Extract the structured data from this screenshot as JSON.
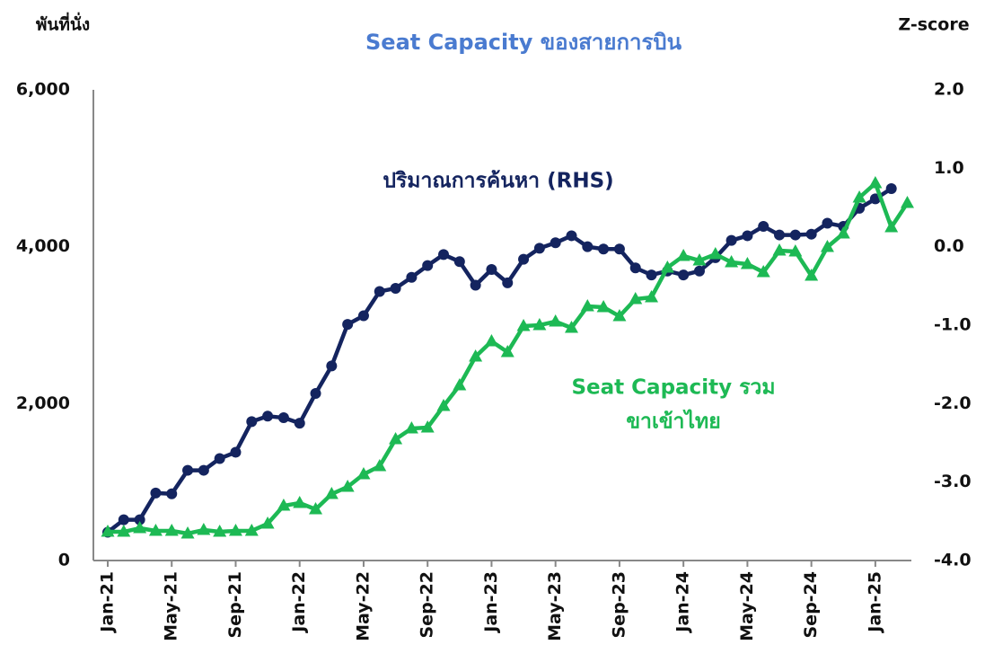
{
  "chart_data": {
    "type": "line",
    "title": "Seat Capacity ของสายการบิน",
    "ylabel": "พันที่นั่ง",
    "y2label": "Z-score",
    "categories": [
      "Jan-21",
      null,
      null,
      null,
      "May-21",
      null,
      null,
      null,
      "Sep-21",
      null,
      null,
      null,
      "Jan-22",
      null,
      null,
      null,
      "May-22",
      null,
      null,
      null,
      "Sep-22",
      null,
      null,
      null,
      "Jan-23",
      null,
      null,
      null,
      "May-23",
      null,
      null,
      null,
      "Sep-23",
      null,
      null,
      null,
      "Jan-24",
      null,
      null,
      null,
      "May-24",
      null,
      null,
      null,
      "Sep-24",
      null,
      null,
      null,
      "Jan-25",
      null,
      null
    ],
    "ylim": [
      0,
      6000
    ],
    "yticks": [
      0,
      {
        "value": 2000,
        "label": "2,000"
      },
      {
        "value": 4000,
        "label": "4,000"
      },
      {
        "value": 6000,
        "label": "6,000"
      }
    ],
    "y2lim": [
      -4,
      2
    ],
    "y2ticks": [
      {
        "value": -4,
        "label": "-4.0"
      },
      {
        "value": -3,
        "label": "-3.0"
      },
      {
        "value": -2,
        "label": "-2.0"
      },
      {
        "value": -1,
        "label": "-1.0"
      },
      {
        "value": 0,
        "label": "0.0"
      },
      {
        "value": 1,
        "label": "1.0"
      },
      {
        "value": 2,
        "label": "2.0"
      }
    ],
    "grid": false,
    "series": [
      {
        "label_lines": [
          "ปริมาณการค้นหา (RHS)"
        ],
        "color": "#14245f",
        "marker": "circle",
        "axis": "y2",
        "values": [
          -3.64,
          -3.48,
          -3.48,
          -3.14,
          -3.15,
          -2.85,
          -2.85,
          -2.7,
          -2.62,
          -2.23,
          -2.16,
          -2.18,
          -2.25,
          -1.87,
          -1.52,
          -0.99,
          -0.88,
          -0.57,
          -0.53,
          -0.39,
          -0.24,
          -0.1,
          -0.19,
          -0.49,
          -0.29,
          -0.46,
          -0.16,
          -0.02,
          0.05,
          0.14,
          0.0,
          -0.03,
          -0.03,
          -0.27,
          -0.36,
          -0.31,
          -0.36,
          -0.31,
          -0.14,
          0.08,
          0.14,
          0.26,
          0.15,
          0.15,
          0.16,
          0.3,
          0.26,
          0.49,
          0.61,
          0.74,
          null
        ]
      },
      {
        "label_lines": [
          "Seat Capacity รวม",
          "ขาเข้าไทย"
        ],
        "color": "#1db954",
        "marker": "triangle",
        "axis": "y",
        "values": [
          366,
          366,
          412,
          378,
          378,
          344,
          389,
          366,
          378,
          378,
          469,
          698,
          733,
          653,
          847,
          939,
          1099,
          1202,
          1546,
          1683,
          1695,
          1969,
          2233,
          2599,
          2794,
          2656,
          2988,
          3000,
          3046,
          2966,
          3240,
          3229,
          3114,
          3332,
          3355,
          3733,
          3882,
          3824,
          3904,
          3801,
          3779,
          3675,
          3950,
          3939,
          3630,
          3996,
          4168,
          4626,
          4809,
          4248,
          4557
        ]
      }
    ]
  }
}
